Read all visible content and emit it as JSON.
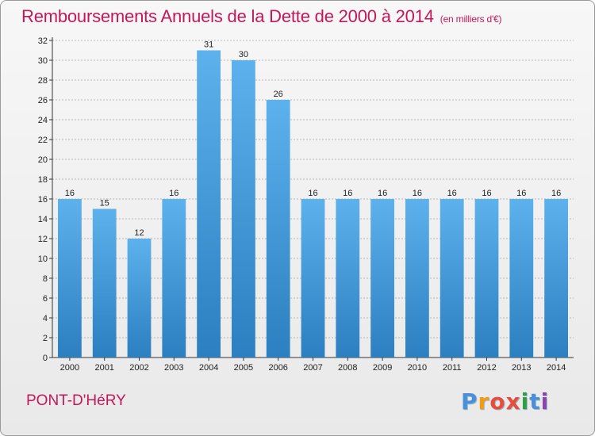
{
  "header": {
    "title": "Remboursements Annuels de la Dette de 2000 à 2014",
    "unit": "(en milliers d'€)"
  },
  "footer": {
    "commune": "PONT-D'HéRY",
    "brand_letters": [
      {
        "char": "P",
        "color": "#4a90d9"
      },
      {
        "char": "r",
        "color": "#f39c12"
      },
      {
        "char": "o",
        "color": "#e74c3c"
      },
      {
        "char": "x",
        "color": "#e74c3c"
      },
      {
        "char": "i",
        "color": "#2f9e44"
      },
      {
        "char": "t",
        "color": "#4a90d9"
      },
      {
        "char": "i",
        "color": "#8e44ad"
      }
    ]
  },
  "colors": {
    "title": "#c2185b",
    "bar_light": "#5db1ec",
    "bar_dark": "#2c7fc0",
    "grid": "#7f7f7f"
  },
  "chart_data": {
    "type": "bar",
    "title": "Remboursements Annuels de la Dette de 2000 à 2014",
    "subtitle": "(en milliers d'€)",
    "categories": [
      "2000",
      "2001",
      "2002",
      "2003",
      "2004",
      "2005",
      "2006",
      "2007",
      "2008",
      "2009",
      "2010",
      "2011",
      "2012",
      "2013",
      "2014"
    ],
    "values": [
      16,
      15,
      12,
      16,
      31,
      30,
      26,
      16,
      16,
      16,
      16,
      16,
      16,
      16,
      16
    ],
    "ylim": [
      0,
      32
    ],
    "yticks": [
      0,
      2,
      4,
      6,
      8,
      10,
      12,
      14,
      16,
      18,
      20,
      22,
      24,
      26,
      28,
      30,
      32
    ],
    "grid": "horizontal dashed",
    "legend": "none"
  }
}
